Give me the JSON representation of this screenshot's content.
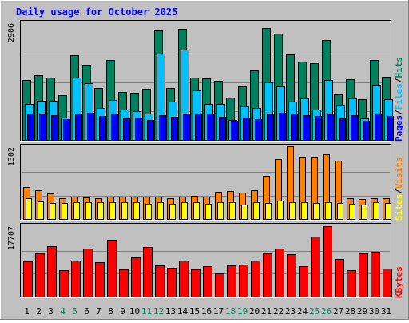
{
  "chart_data": {
    "type": "bar",
    "title": "Daily usage for October 2025",
    "days": [
      "1",
      "2",
      "3",
      "4",
      "5",
      "6",
      "7",
      "8",
      "9",
      "10",
      "11",
      "12",
      "13",
      "14",
      "15",
      "16",
      "17",
      "18",
      "19",
      "20",
      "21",
      "22",
      "23",
      "24",
      "25",
      "26",
      "27",
      "28",
      "29",
      "30",
      "31"
    ],
    "weekend_days": [
      "4",
      "5",
      "11",
      "12",
      "18",
      "19",
      "25",
      "26"
    ],
    "panels": [
      {
        "name": "hits-files-pages",
        "ymax_label": "2906",
        "ymax": 2906,
        "series": [
          {
            "name": "Hits",
            "color": "#00805c",
            "values": [
              1500,
              1620,
              1560,
              1120,
              2100,
              1870,
              1290,
              1990,
              1200,
              1170,
              1280,
              2720,
              1290,
              2760,
              1550,
              1530,
              1480,
              1060,
              1330,
              1730,
              2780,
              2650,
              2120,
              1950,
              1920,
              2480,
              1130,
              1520,
              1020,
              2000,
              1570
            ]
          },
          {
            "name": "Files",
            "color": "#00c0ff",
            "values": [
              900,
              970,
              970,
              550,
              1550,
              1420,
              800,
              1000,
              750,
              710,
              650,
              2140,
              950,
              2250,
              1230,
              900,
              900,
              490,
              840,
              790,
              1440,
              1340,
              960,
              1040,
              760,
              1490,
              880,
              1040,
              530,
              1380,
              1010
            ]
          },
          {
            "name": "Pages",
            "color": "#0000ff",
            "values": [
              630,
              650,
              620,
              510,
              640,
              670,
              590,
              630,
              540,
              560,
              500,
              620,
              580,
              660,
              640,
              630,
              580,
              470,
              560,
              520,
              660,
              680,
              640,
              620,
              590,
              660,
              540,
              620,
              480,
              640,
              600
            ]
          }
        ],
        "legend_labels": [
          "Pages",
          "Files",
          "Hits"
        ],
        "legend_separator": "/"
      },
      {
        "name": "visits-sites",
        "ymax_label": "1302",
        "ymax": 1302,
        "series": [
          {
            "name": "Visits",
            "color": "#ff8000",
            "values": [
              580,
              520,
              470,
              380,
              410,
              390,
              380,
              400,
              410,
              400,
              400,
              400,
              380,
              400,
              420,
              400,
              490,
              510,
              480,
              520,
              780,
              1090,
              1310,
              1130,
              1130,
              1170,
              1060,
              380,
              360,
              380,
              380
            ]
          },
          {
            "name": "Sites",
            "color": "#ffff00",
            "values": [
              370,
              320,
              290,
              290,
              310,
              310,
              300,
              300,
              310,
              300,
              270,
              300,
              280,
              300,
              300,
              270,
              300,
              300,
              260,
              300,
              290,
              330,
              300,
              300,
              290,
              300,
              290,
              280,
              260,
              300,
              290
            ]
          }
        ],
        "legend_labels": [
          "Sites",
          "Visits"
        ],
        "legend_separator": "/"
      },
      {
        "name": "kbytes",
        "ymax_label": "17707",
        "ymax": 17707,
        "series": [
          {
            "name": "KBytes",
            "color": "#ff0000",
            "values": [
              8800,
              10900,
              12700,
              6700,
              9000,
              12000,
              8600,
              14200,
              6900,
              9900,
              12500,
              7900,
              7200,
              9100,
              6900,
              7700,
              5800,
              7900,
              8100,
              9100,
              10900,
              12100,
              10600,
              7600,
              15000,
              17707,
              9400,
              6700,
              10800,
              11300,
              7000
            ]
          }
        ],
        "legend_labels": [
          "KBytes"
        ],
        "legend_separator": ""
      }
    ]
  },
  "colors": {
    "background": "#c0c0c0",
    "bar_edge": "#000000",
    "gridline": "#808080",
    "title": "#0000ff",
    "weekday_tick": "#000000",
    "weekend_tick": "#00805c"
  }
}
